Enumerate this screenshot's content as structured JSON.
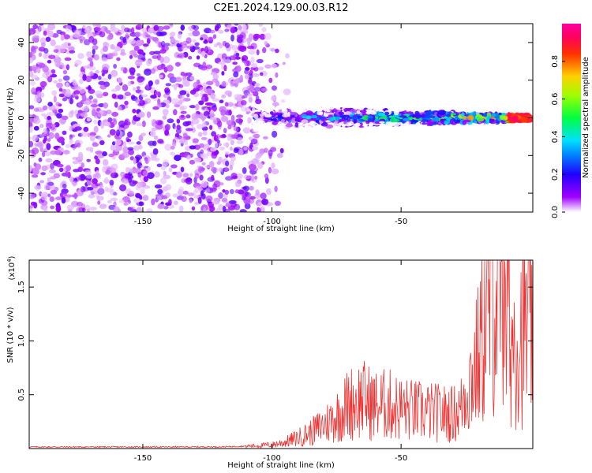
{
  "title": "C2E1.2024.129.00.03.R12",
  "colors": {
    "spectro_background": "#ffffff",
    "noise_dark": "#7a1fe0",
    "noise_light": "#d9b8f5",
    "snr_line": "#ee3333",
    "axis": "#000000"
  },
  "chart_data": [
    {
      "type": "heatmap",
      "title": "C2E1.2024.129.00.03.R12",
      "xlabel": "Height of straight line (km)",
      "ylabel": "Frequency (Hz)",
      "xlim": [
        -194,
        1
      ],
      "ylim": [
        -50,
        50
      ],
      "x_ticks": [
        -150,
        -100,
        -50
      ],
      "y_ticks": [
        -40,
        -20,
        0,
        20,
        40
      ],
      "grid": false,
      "description_values": {
        "signal_band_center_hz": 0,
        "signal_band_half_width_hz": [
          4,
          1
        ],
        "noise_region_km": [
          -194,
          -93
        ],
        "signal_region_km": [
          -108,
          0
        ]
      },
      "colorbar": {
        "label": "Normalized spectral amplitude",
        "range": [
          0.0,
          1.0
        ],
        "ticks": [
          "0.0",
          "0.2",
          "0.4",
          "0.6",
          "0.8"
        ],
        "stops": [
          "#ffffff",
          "#8a00e8",
          "#0000ff",
          "#00d8ff",
          "#00ff00",
          "#ffff00",
          "#ff8000",
          "#ff0000",
          "#ff0080"
        ]
      }
    },
    {
      "type": "line",
      "xlabel": "Height of straight line (km)",
      "ylabel": "SNR (10 * v/v)",
      "y_multiplier_label": "(x10",
      "y_multiplier_exp": "4",
      "y_multiplier_close": ")",
      "xlim": [
        -194,
        1
      ],
      "ylim": [
        0,
        17500
      ],
      "x_ticks": [
        -150,
        -100,
        -50
      ],
      "y_ticks": [
        5000,
        10000,
        15000
      ],
      "y_tick_labels": [
        "0.5",
        "1.0",
        "1.5"
      ],
      "grid": false,
      "series": [
        {
          "x": [
            -194,
            -180,
            -160,
            -140,
            -120,
            -110,
            -100,
            -95,
            -90,
            -85,
            -80,
            -75,
            -70,
            -65,
            -60,
            -55,
            -50,
            -45,
            -40,
            -35,
            -30,
            -27,
            -25,
            -22,
            -20,
            -18,
            -16,
            -14,
            -12,
            -10,
            -8,
            -6,
            -4,
            -2,
            0
          ],
          "y": [
            150,
            150,
            150,
            150,
            160,
            220,
            350,
            600,
            1000,
            1500,
            2200,
            3000,
            4200,
            4600,
            4000,
            4100,
            3700,
            3500,
            3400,
            3300,
            3200,
            3600,
            5500,
            7000,
            8500,
            11000,
            13000,
            15500,
            13000,
            13500,
            10000,
            10500,
            10800,
            11300,
            11200
          ]
        }
      ]
    }
  ]
}
